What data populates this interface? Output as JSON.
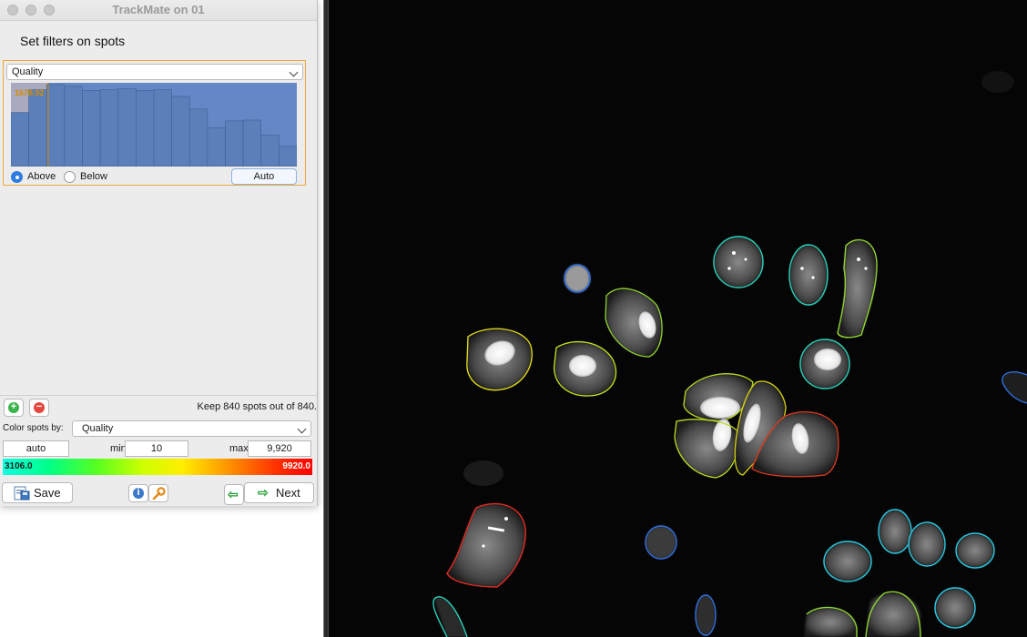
{
  "window": {
    "title": "TrackMate on 01"
  },
  "panel": {
    "heading": "Set filters on spots"
  },
  "filter": {
    "feature": "Quality",
    "threshold_label": "1678.92",
    "above_label": "Above",
    "below_label": "Below",
    "selected": "Above",
    "auto_label": "Auto",
    "histogram_bins": [
      64,
      91,
      97,
      95,
      90,
      91,
      92,
      90,
      91,
      83,
      68,
      46,
      54,
      55,
      37,
      24
    ],
    "threshold_fraction": 0.13
  },
  "summary": {
    "keep_text": "Keep 840 spots out of  840."
  },
  "color_by": {
    "label": "Color spots by:",
    "feature": "Quality",
    "auto_value": "auto",
    "min_label": "min",
    "min_value": "10",
    "max_label": "max",
    "max_value": "9,920",
    "bar_min": "3106.0",
    "bar_max": "9920.0"
  },
  "buttons": {
    "save": "Save",
    "next": "Next"
  },
  "icons": {
    "add": "add-filter-icon",
    "remove": "remove-filter-icon",
    "save": "save-icon",
    "info": "info-icon",
    "wrench": "wrench-icon",
    "prev": "arrow-left-icon",
    "next": "arrow-right-icon"
  },
  "colors": {
    "histogram": "#5a7fb9",
    "threshold": "#d68b00",
    "panel_border": "#f0a838"
  }
}
